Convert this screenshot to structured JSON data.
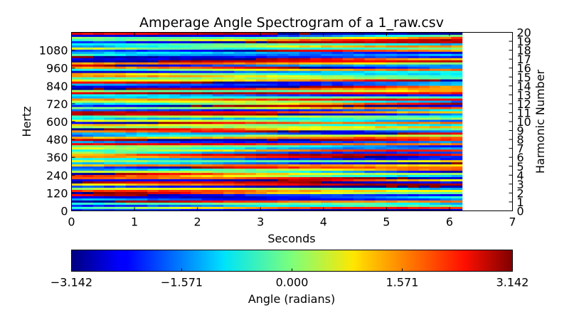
{
  "chart_data": {
    "type": "heatmap",
    "title": "Amperage Angle Spectrogram of a 1_raw.csv",
    "xlabel": "Seconds",
    "ylabel": "Hertz",
    "y2label": "Harmonic Number",
    "xlim": [
      0,
      7
    ],
    "ylim": [
      0,
      1200
    ],
    "data_x_extent": [
      0,
      6.2
    ],
    "x_ticks": [
      "0",
      "1",
      "2",
      "3",
      "4",
      "5",
      "6",
      "7"
    ],
    "y_ticks": [
      "0",
      "120",
      "240",
      "360",
      "480",
      "600",
      "720",
      "840",
      "960",
      "1080"
    ],
    "y2_ticks": [
      "0",
      "1",
      "2",
      "3",
      "4",
      "5",
      "6",
      "7",
      "8",
      "9",
      "10",
      "11",
      "12",
      "13",
      "14",
      "15",
      "16",
      "17",
      "18",
      "19",
      "20"
    ],
    "colormap": "jet",
    "colorbar": {
      "label": "Angle (radians)",
      "range": [
        -3.142,
        3.142
      ],
      "ticks": [
        "−3.142",
        "−1.571",
        "0.000",
        "1.571",
        "3.142"
      ],
      "orientation": "horizontal",
      "placement": "bottom"
    },
    "grid": false
  }
}
